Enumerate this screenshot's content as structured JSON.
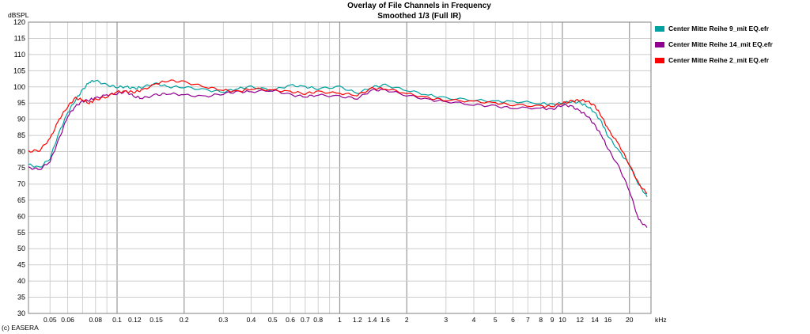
{
  "chart_data": {
    "type": "line",
    "title": "Overlay of File Channels in Frequency",
    "subtitle": "Smoothed 1/3 (Full IR)",
    "ylabel": "dBSPL",
    "xlabel": "kHz",
    "x_scale": "log",
    "xlim": [
      0.04,
      25
    ],
    "ylim": [
      30,
      120
    ],
    "grid": true,
    "legend_position": "right",
    "y_ticks": [
      30,
      35,
      40,
      45,
      50,
      55,
      60,
      65,
      70,
      75,
      80,
      85,
      90,
      95,
      100,
      105,
      110,
      115,
      120
    ],
    "x_ticks": [
      0.05,
      0.06,
      0.08,
      0.1,
      0.12,
      0.15,
      0.2,
      0.3,
      0.4,
      0.5,
      0.6,
      0.7,
      0.8,
      1,
      1.2,
      1.4,
      1.6,
      2,
      3,
      4,
      5,
      6,
      7,
      8,
      9,
      10,
      12,
      14,
      16,
      20
    ],
    "x_tick_labels": [
      "0.05",
      "0.06",
      "0.08",
      "0.1",
      "0.12",
      "0.15",
      "0.2",
      "0.3",
      "0.4",
      "0.5",
      "0.6",
      "0.7",
      "0.8",
      "1",
      "1.2",
      "1.4",
      "1.6",
      "2",
      "3",
      "4",
      "5",
      "6",
      "7",
      "8",
      "9",
      "10",
      "12",
      "14",
      "16",
      "20"
    ],
    "x": [
      0.04,
      0.045,
      0.05,
      0.055,
      0.06,
      0.065,
      0.07,
      0.075,
      0.08,
      0.09,
      0.1,
      0.11,
      0.12,
      0.13,
      0.15,
      0.17,
      0.2,
      0.25,
      0.3,
      0.35,
      0.4,
      0.5,
      0.6,
      0.7,
      0.8,
      1,
      1.2,
      1.4,
      1.6,
      2,
      2.5,
      3,
      4,
      5,
      6,
      8,
      9,
      10,
      11,
      12,
      13,
      14,
      15,
      16,
      18,
      20,
      22,
      24
    ],
    "series": [
      {
        "name": "Center Mitte Reihe 9_mit EQ.efr",
        "color": "#00a0a0",
        "values": [
          76,
          75,
          78,
          86,
          92,
          96,
          99,
          101.5,
          102,
          100.5,
          100,
          100,
          99.5,
          100,
          101,
          100,
          100,
          99,
          98.5,
          99.5,
          100,
          99,
          100.5,
          100,
          99.5,
          100,
          98,
          100,
          100.5,
          99,
          97.5,
          96.5,
          96,
          95.5,
          95.5,
          95,
          94.5,
          95,
          95.5,
          95,
          94,
          92,
          89,
          85,
          80,
          76,
          70,
          66
        ]
      },
      {
        "name": "Center Mitte Reihe 14_mit EQ.efr",
        "color": "#900090",
        "values": [
          75,
          74.5,
          77,
          84,
          91,
          94,
          95.5,
          96,
          96.5,
          97.5,
          98,
          98.5,
          97,
          96.5,
          97.5,
          98,
          97.5,
          97,
          98,
          98.5,
          98.5,
          99,
          97.5,
          97,
          97.5,
          97,
          96.5,
          99,
          99,
          97.5,
          96,
          95.5,
          94.5,
          94,
          93.5,
          93.5,
          93,
          94.5,
          94,
          92.5,
          91,
          88,
          85,
          81,
          75,
          68,
          59,
          56.5
        ]
      },
      {
        "name": "Center Mitte Reihe 2_mit EQ.efr",
        "color": "#ff0000",
        "values": [
          80,
          80.5,
          84,
          90,
          94,
          96.5,
          96,
          95,
          96,
          97,
          98.5,
          98.5,
          98.5,
          99,
          101,
          102,
          101.5,
          100,
          99,
          98.5,
          99.5,
          99,
          98.5,
          98,
          98.5,
          98,
          97.5,
          99.5,
          99.5,
          98,
          96.5,
          96,
          95.5,
          95,
          94.5,
          94,
          94,
          95,
          95.5,
          96,
          95.5,
          94,
          91,
          87,
          82,
          76,
          70,
          67
        ]
      }
    ]
  },
  "credit": "(c) EASERA"
}
